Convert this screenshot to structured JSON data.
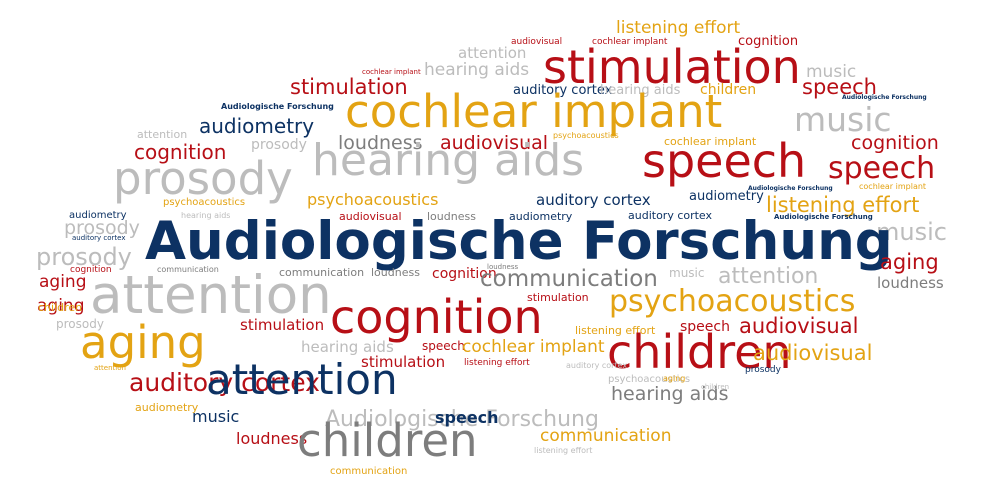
{
  "colors": {
    "navy": "#0d3263",
    "red": "#b70f16",
    "gold": "#e3a313",
    "light_gray": "#bcbcbc",
    "dark_gray": "#7d7d7d",
    "background": "#ffffff"
  },
  "words": [
    "listening effort",
    "attention",
    "audiovisual",
    "cochlear implant",
    "cognition",
    "stimulation",
    "music",
    "cochlear implant",
    "hearing aids",
    "auditory cortex",
    "hearing aids",
    "children",
    "stimulation",
    "speech",
    "Audiologische Forschung",
    "Audiologische Forschung",
    "cochlear implant",
    "music",
    "audiometry",
    "attention",
    "psychoacoustics",
    "cochlear implant",
    "cognition",
    "cognition",
    "prosody",
    "loudness",
    "audiovisual",
    "hearing aids",
    "speech",
    "speech",
    "prosody",
    "Audiologische Forschung",
    "cochlear implant",
    "audiometry",
    "psychoacoustics",
    "auditory cortex",
    "listening effort",
    "hearing aids",
    "psychoacoustics",
    "audiometry",
    "audiovisual",
    "loudness",
    "audiometry",
    "auditory cortex",
    "Audiologische Forschung",
    "prosody",
    "music",
    "auditory cortex",
    "Audiologische Forschung",
    "prosody",
    "aging",
    "communication",
    "loudness",
    "communication",
    "cognition",
    "loudness",
    "music",
    "attention",
    "cognition",
    "aging",
    "attention",
    "communication",
    "loudness",
    "aging",
    "psychoacoustics",
    "stimulation",
    "aging",
    "children",
    "cognition",
    "prosody",
    "stimulation",
    "listening effort",
    "speech",
    "audiovisual",
    "hearing aids",
    "speech",
    "cochlear implant",
    "aging",
    "children",
    "audiovisual",
    "stimulation",
    "listening effort",
    "attention",
    "auditory cortex",
    "prosody",
    "psychoacoustics",
    "aging",
    "auditory cortex",
    "attention",
    "hearing aids",
    "children",
    "audiometry",
    "music",
    "Audiologische Forschung",
    "speech",
    "loudness",
    "children",
    "communication",
    "listening effort",
    "communication"
  ]
}
